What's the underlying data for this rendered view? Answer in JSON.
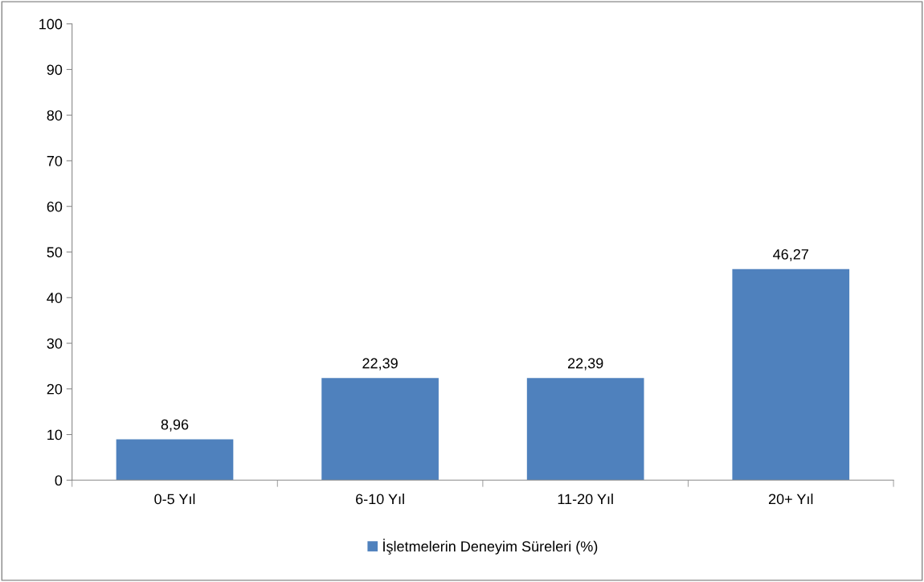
{
  "chart_data": {
    "type": "bar",
    "categories": [
      "0-5 Yıl",
      "6-10 Yıl",
      "11-20 Yıl",
      "20+ Yıl"
    ],
    "series": [
      {
        "name": "İşletmelerin Deneyim Süreleri (%)",
        "color": "#4f81bd",
        "values": [
          8.96,
          22.39,
          22.39,
          46.27
        ],
        "value_labels": [
          "8,96",
          "22,39",
          "22,39",
          "46,27"
        ]
      }
    ],
    "ylim": [
      0,
      100
    ],
    "yticks": [
      0,
      10,
      20,
      30,
      40,
      50,
      60,
      70,
      80,
      90,
      100
    ],
    "grid": false,
    "legend": "bottom"
  }
}
